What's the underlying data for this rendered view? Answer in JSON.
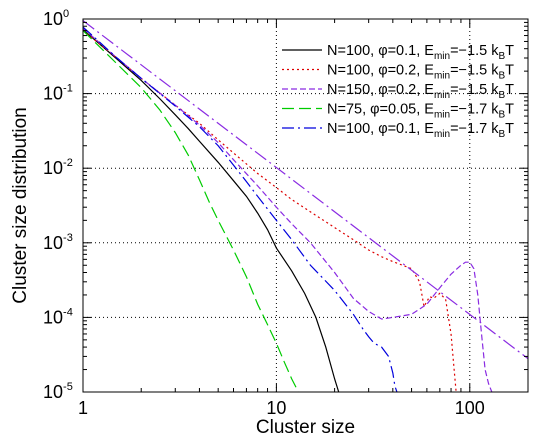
{
  "chart_data": {
    "type": "line",
    "title": "",
    "xlabel": "Cluster size",
    "ylabel": "Cluster size distribution",
    "xscale": "log",
    "yscale": "log",
    "xlim": [
      1,
      200
    ],
    "ylim": [
      1e-05,
      1
    ],
    "grid": true,
    "legend_position": "top-right",
    "x_ticks": [
      {
        "value": 1,
        "label": "1"
      },
      {
        "value": 10,
        "label": "10"
      },
      {
        "value": 100,
        "label": "100"
      }
    ],
    "y_ticks": [
      {
        "value": 1,
        "base": "10",
        "exp": "0"
      },
      {
        "value": 0.1,
        "base": "10",
        "exp": "-1"
      },
      {
        "value": 0.01,
        "base": "10",
        "exp": "-2"
      },
      {
        "value": 0.001,
        "base": "10",
        "exp": "-3"
      },
      {
        "value": 0.0001,
        "base": "10",
        "exp": "-4"
      },
      {
        "value": 1e-05,
        "base": "10",
        "exp": "-5"
      }
    ],
    "series": [
      {
        "name": "N=100, φ=0.1, E_min=−1.5 k_BT",
        "legend": {
          "pre": "N=100, ",
          "phi": "φ=0.1, E",
          "sub1": "min",
          "mid": "=−1.5 k",
          "sub2": "B",
          "post": "T"
        },
        "color": "#000000",
        "dash": "",
        "x": [
          1,
          1.5,
          2,
          2.5,
          3,
          3.5,
          4,
          5,
          6,
          7,
          8,
          9,
          10,
          12,
          14,
          16,
          18,
          20,
          21
        ],
        "y": [
          0.72,
          0.29,
          0.15,
          0.085,
          0.052,
          0.034,
          0.023,
          0.012,
          0.0068,
          0.0042,
          0.0025,
          0.0015,
          0.00085,
          0.00042,
          0.00021,
          0.0001,
          4e-05,
          1.5e-05,
          1e-05
        ]
      },
      {
        "name": "N=100, φ=0.2, E_min=−1.5 k_BT",
        "legend": {
          "pre": "N=100, ",
          "phi": "φ=0.2, E",
          "sub1": "min",
          "mid": "=−1.5 k",
          "sub2": "B",
          "post": "T"
        },
        "color": "#dd0000",
        "dash": "2,3",
        "x": [
          1,
          1.5,
          2,
          3,
          4,
          5,
          6,
          8,
          10,
          12,
          15,
          20,
          25,
          30,
          35,
          40,
          50,
          55,
          58,
          62,
          65,
          70,
          75,
          80,
          83,
          85
        ],
        "y": [
          0.7,
          0.3,
          0.16,
          0.07,
          0.04,
          0.024,
          0.016,
          0.0085,
          0.0055,
          0.0038,
          0.0026,
          0.0016,
          0.0011,
          0.0008,
          0.00065,
          0.00056,
          0.00045,
          0.0003,
          0.00014,
          0.00019,
          0.00018,
          0.00021,
          0.000175,
          6e-05,
          2e-05,
          1e-05
        ]
      },
      {
        "name": "N=150, φ=0.2, E_min=−1.5 k_BT",
        "legend": {
          "pre": "N=150, ",
          "phi": "φ=0.2, E",
          "sub1": "min",
          "mid": "=−1.5 k",
          "sub2": "B",
          "post": "T"
        },
        "color": "#8a2be2",
        "dash": "6,3",
        "x": [
          1,
          1.5,
          2,
          3,
          4,
          5,
          6,
          8,
          10,
          12,
          15,
          20,
          25,
          30,
          35,
          40,
          50,
          60,
          70,
          80,
          90,
          95,
          100,
          105,
          110,
          115,
          120,
          125,
          130
        ],
        "y": [
          0.75,
          0.3,
          0.16,
          0.07,
          0.038,
          0.022,
          0.013,
          0.0058,
          0.003,
          0.0018,
          0.001,
          0.0004,
          0.00018,
          0.00012,
          9.5e-05,
          0.0001,
          0.00011,
          0.00015,
          0.00025,
          0.00038,
          0.0005,
          0.00055,
          0.00055,
          0.00045,
          0.0002,
          6e-05,
          2e-05,
          1.3e-05,
          1e-05
        ]
      },
      {
        "name": "N=75, φ=0.05, E_min=−1.7 k_BT",
        "legend": {
          "pre": "N=75, ",
          "phi": "φ=0.05, E",
          "sub1": "min",
          "mid": "=−1.7 k",
          "sub2": "B",
          "post": "T"
        },
        "color": "#00cc00",
        "dash": "12,5",
        "x": [
          1,
          1.5,
          2,
          2.5,
          3,
          3.5,
          4,
          4.5,
          5,
          6,
          7,
          8,
          9,
          10,
          11,
          12,
          13
        ],
        "y": [
          0.7,
          0.25,
          0.12,
          0.06,
          0.03,
          0.015,
          0.007,
          0.0035,
          0.002,
          0.0008,
          0.00035,
          0.00015,
          8e-05,
          4.5e-05,
          2.5e-05,
          1.5e-05,
          1e-05
        ]
      },
      {
        "name": "N=100, φ=0.1, E_min=−1.7 k_BT",
        "legend": {
          "pre": "N=100, ",
          "phi": "φ=0.1, E",
          "sub1": "min",
          "mid": "=−1.7 k",
          "sub2": "B",
          "post": "T"
        },
        "color": "#0000dd",
        "dash": "12,4,2,4",
        "x": [
          1,
          1.5,
          2,
          3,
          4,
          5,
          6,
          7,
          8,
          10,
          12,
          15,
          20,
          25,
          28,
          30,
          32,
          35,
          38,
          40,
          41,
          42
        ],
        "y": [
          0.78,
          0.3,
          0.16,
          0.068,
          0.036,
          0.02,
          0.011,
          0.0066,
          0.0042,
          0.002,
          0.0011,
          0.0005,
          0.00023,
          0.00011,
          7e-05,
          5.5e-05,
          4.5e-05,
          4e-05,
          3e-05,
          1.8e-05,
          1.2e-05,
          1e-05
        ]
      },
      {
        "name": "",
        "color": "#8a2be2",
        "dash": "14,4,2,4",
        "x": [
          1,
          200
        ],
        "y": [
          0.95,
          2.8e-05
        ]
      }
    ]
  }
}
